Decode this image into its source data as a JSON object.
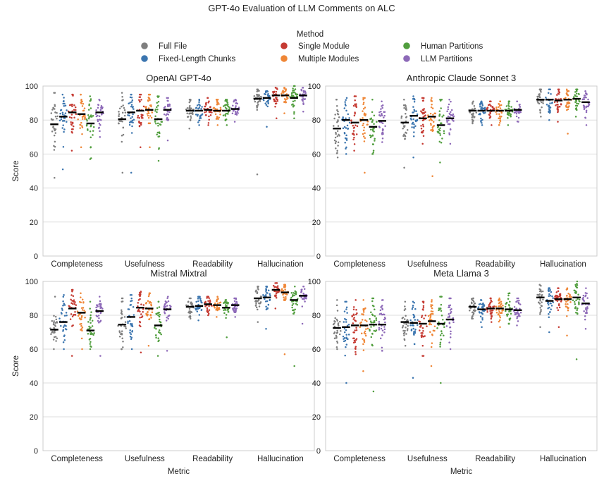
{
  "figure_title": "GPT-4o Evaluation of LLM Comments on ALC",
  "legend": {
    "title": "Method",
    "entries": [
      {
        "name": "Full File",
        "color": "#7f7f7f"
      },
      {
        "name": "Fixed-Length Chunks",
        "color": "#3b75af"
      },
      {
        "name": "Single Module",
        "color": "#c53a32"
      },
      {
        "name": "Multiple Modules",
        "color": "#ef8636"
      },
      {
        "name": "Human Partitions",
        "color": "#519e3e"
      },
      {
        "name": "LLM Partitions",
        "color": "#8d69b8"
      }
    ]
  },
  "chart_data": [
    {
      "type": "scatter",
      "subtype": "swarm",
      "title": "OpenAI GPT-4o",
      "xlabel": "",
      "ylabel": "Score",
      "ylim": [
        0,
        100
      ],
      "yticks": [
        0,
        20,
        40,
        60,
        80,
        100
      ],
      "categories": [
        "Completeness",
        "Usefulness",
        "Readability",
        "Hallucination"
      ],
      "series": [
        {
          "name": "Full File",
          "means": [
            77.5,
            80.5,
            85.5,
            92.5
          ],
          "ranges": [
            [
              46,
              96
            ],
            [
              49,
              96
            ],
            [
              75,
              92
            ],
            [
              48,
              98
            ]
          ]
        },
        {
          "name": "Fixed-Length Chunks",
          "means": [
            82,
            84.5,
            85.5,
            93
          ],
          "ranges": [
            [
              51,
              95
            ],
            [
              49,
              95
            ],
            [
              77,
              92
            ],
            [
              76,
              97
            ]
          ]
        },
        {
          "name": "Single Module",
          "means": [
            84.5,
            85.5,
            86,
            94.5
          ],
          "ranges": [
            [
              62,
              95
            ],
            [
              64,
              95
            ],
            [
              77,
              93
            ],
            [
              81,
              99
            ]
          ]
        },
        {
          "name": "Multiple Modules",
          "means": [
            83.5,
            86,
            85.5,
            94.5
          ],
          "ranges": [
            [
              64,
              95
            ],
            [
              64,
              95
            ],
            [
              77,
              92
            ],
            [
              84,
              99
            ]
          ]
        },
        {
          "name": "Human Partitions",
          "means": [
            78,
            80.5,
            85.5,
            93
          ],
          "ranges": [
            [
              57,
              94
            ],
            [
              56,
              94
            ],
            [
              77,
              92
            ],
            [
              81,
              100
            ]
          ]
        },
        {
          "name": "LLM Partitions",
          "means": [
            84.5,
            86,
            86.5,
            94.5
          ],
          "ranges": [
            [
              70,
              92
            ],
            [
              68,
              93
            ],
            [
              79,
              92
            ],
            [
              85,
              99
            ]
          ]
        }
      ]
    },
    {
      "type": "scatter",
      "subtype": "swarm",
      "title": "Anthropic Claude Sonnet 3",
      "xlabel": "",
      "ylabel": "",
      "ylim": [
        0,
        100
      ],
      "yticks": [
        0,
        20,
        40,
        60,
        80,
        100
      ],
      "categories": [
        "Completeness",
        "Usefulness",
        "Readability",
        "Hallucination"
      ],
      "series": [
        {
          "name": "Full File",
          "means": [
            75,
            78.5,
            85.5,
            92
          ],
          "ranges": [
            [
              58,
              92
            ],
            [
              52,
              92
            ],
            [
              78,
              91
            ],
            [
              82,
              98
            ]
          ]
        },
        {
          "name": "Fixed-Length Chunks",
          "means": [
            80,
            82.5,
            85.5,
            92
          ],
          "ranges": [
            [
              60,
              93
            ],
            [
              58,
              94
            ],
            [
              77,
              91
            ],
            [
              80,
              98
            ]
          ]
        },
        {
          "name": "Single Module",
          "means": [
            78.5,
            81,
            85.5,
            91.5
          ],
          "ranges": [
            [
              62,
              94
            ],
            [
              66,
              93
            ],
            [
              77,
              91
            ],
            [
              79,
              98
            ]
          ]
        },
        {
          "name": "Multiple Modules",
          "means": [
            80,
            82,
            85.5,
            92
          ],
          "ranges": [
            [
              49,
              93
            ],
            [
              47,
              93
            ],
            [
              77,
              91
            ],
            [
              72,
              98
            ]
          ]
        },
        {
          "name": "Human Partitions",
          "means": [
            76,
            77,
            85.5,
            92.5
          ],
          "ranges": [
            [
              60,
              92
            ],
            [
              55,
              92
            ],
            [
              77,
              91
            ],
            [
              82,
              98
            ]
          ]
        },
        {
          "name": "LLM Partitions",
          "means": [
            79.5,
            81,
            86,
            90.5
          ],
          "ranges": [
            [
              67,
              91
            ],
            [
              66,
              92
            ],
            [
              79,
              91
            ],
            [
              77,
              97
            ]
          ]
        }
      ]
    },
    {
      "type": "scatter",
      "subtype": "swarm",
      "title": "Mistral Mixtral",
      "xlabel": "Metric",
      "ylabel": "Score",
      "ylim": [
        0,
        100
      ],
      "yticks": [
        0,
        20,
        40,
        60,
        80,
        100
      ],
      "categories": [
        "Completeness",
        "Usefulness",
        "Readability",
        "Hallucination"
      ],
      "series": [
        {
          "name": "Full File",
          "means": [
            71.5,
            74.5,
            85,
            90
          ],
          "ranges": [
            [
              60,
              91
            ],
            [
              60,
              90
            ],
            [
              78,
              90
            ],
            [
              76,
              97
            ]
          ]
        },
        {
          "name": "Fixed-Length Chunks",
          "means": [
            76,
            79,
            85.5,
            90.5
          ],
          "ranges": [
            [
              60,
              92
            ],
            [
              60,
              92
            ],
            [
              77,
              91
            ],
            [
              72,
              97
            ]
          ]
        },
        {
          "name": "Single Module",
          "means": [
            84,
            84.5,
            86.5,
            95
          ],
          "ranges": [
            [
              56,
              95
            ],
            [
              58,
              94
            ],
            [
              80,
              91
            ],
            [
              84,
              99
            ]
          ]
        },
        {
          "name": "Multiple Modules",
          "means": [
            81.5,
            84,
            86,
            93.5
          ],
          "ranges": [
            [
              60,
              93
            ],
            [
              62,
              93
            ],
            [
              79,
              91
            ],
            [
              57,
              98
            ]
          ]
        },
        {
          "name": "Human Partitions",
          "means": [
            71,
            74,
            84.5,
            89
          ],
          "ranges": [
            [
              60,
              88
            ],
            [
              56,
              88
            ],
            [
              67,
              89
            ],
            [
              50,
              97
            ]
          ]
        },
        {
          "name": "LLM Partitions",
          "means": [
            82.5,
            83.5,
            86,
            91.5
          ],
          "ranges": [
            [
              56,
              91
            ],
            [
              59,
              91
            ],
            [
              79,
              90
            ],
            [
              75,
              97
            ]
          ]
        }
      ]
    },
    {
      "type": "scatter",
      "subtype": "swarm",
      "title": "Meta Llama 3",
      "xlabel": "Metric",
      "ylabel": "",
      "ylim": [
        0,
        100
      ],
      "yticks": [
        0,
        20,
        40,
        60,
        80,
        100
      ],
      "categories": [
        "Completeness",
        "Usefulness",
        "Readability",
        "Hallucination"
      ],
      "series": [
        {
          "name": "Full File",
          "means": [
            72.5,
            76,
            85,
            90.5
          ],
          "ranges": [
            [
              60,
              89
            ],
            [
              62,
              88
            ],
            [
              78,
              90
            ],
            [
              73,
              98
            ]
          ]
        },
        {
          "name": "Fixed-Length Chunks",
          "means": [
            73,
            75.5,
            83.5,
            88.5
          ],
          "ranges": [
            [
              40,
              88
            ],
            [
              43,
              88
            ],
            [
              73,
              89
            ],
            [
              70,
              96
            ]
          ]
        },
        {
          "name": "Single Module",
          "means": [
            74,
            75,
            84,
            89.5
          ],
          "ranges": [
            [
              57,
              89
            ],
            [
              56,
              88
            ],
            [
              76,
              90
            ],
            [
              73,
              96
            ]
          ]
        },
        {
          "name": "Multiple Modules",
          "means": [
            74,
            76.5,
            84,
            89.5
          ],
          "ranges": [
            [
              47,
              89
            ],
            [
              50,
              89
            ],
            [
              73,
              90
            ],
            [
              68,
              96
            ]
          ]
        },
        {
          "name": "Human Partitions",
          "means": [
            74.5,
            75,
            83.5,
            90.5
          ],
          "ranges": [
            [
              35,
              90
            ],
            [
              40,
              91
            ],
            [
              75,
              93
            ],
            [
              54,
              100
            ]
          ]
        },
        {
          "name": "LLM Partitions",
          "means": [
            74.5,
            77.5,
            83,
            87
          ],
          "ranges": [
            [
              59,
              89
            ],
            [
              60,
              90
            ],
            [
              74,
              90
            ],
            [
              72,
              96
            ]
          ]
        }
      ]
    }
  ]
}
